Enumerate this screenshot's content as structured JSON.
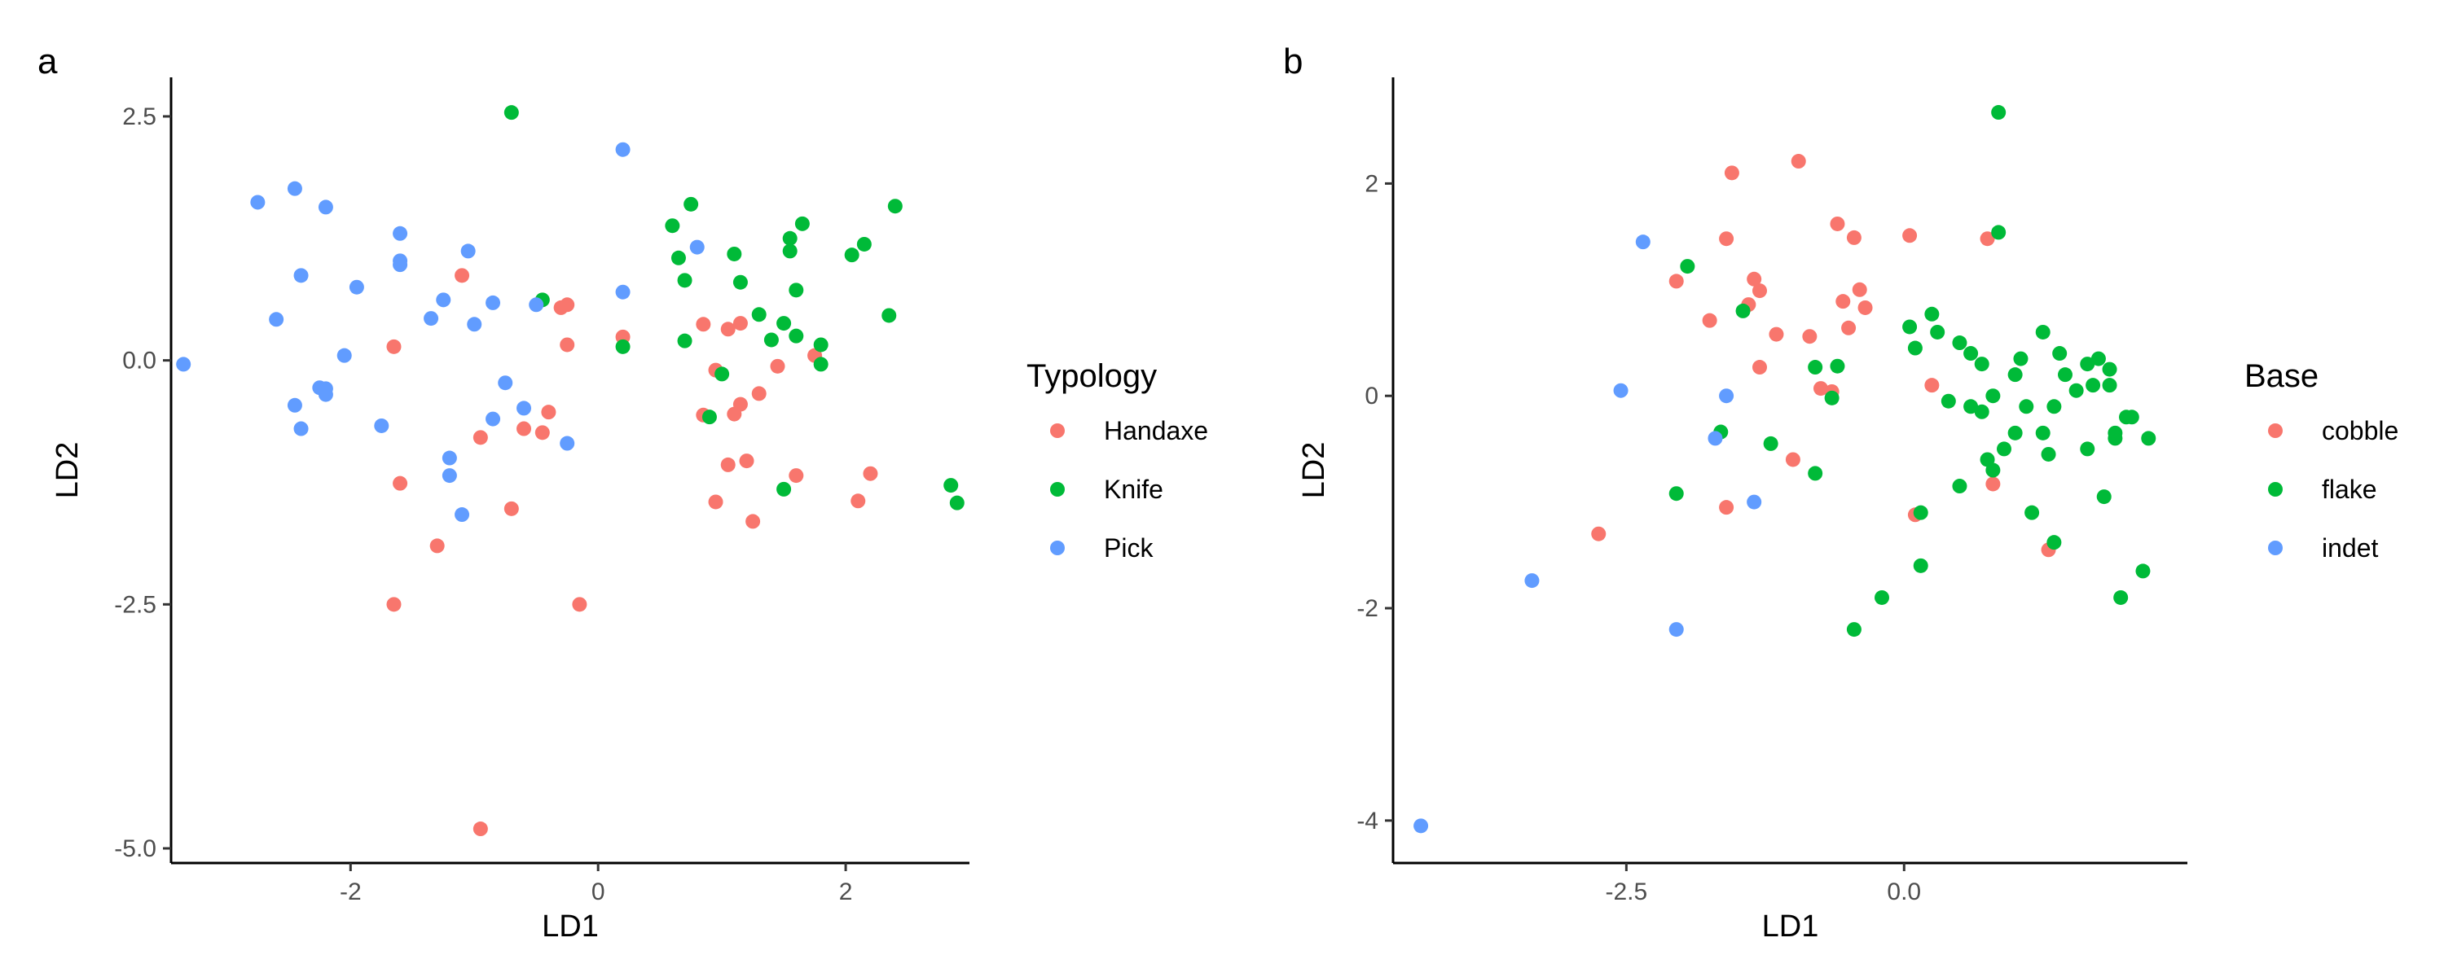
{
  "chart_data": [
    {
      "type": "scatter",
      "panel_tag": "a",
      "xlabel": "LD1",
      "ylabel": "LD2",
      "xlim": [
        -3.45,
        3.0
      ],
      "ylim": [
        -5.15,
        2.9
      ],
      "xticks": [
        -2,
        0,
        2
      ],
      "xtick_labels": [
        "-2",
        "0",
        "2"
      ],
      "yticks": [
        2.5,
        0,
        -2.5,
        -5
      ],
      "ytick_labels": [
        "2.5",
        "0.0",
        "-2.5",
        "-5.0"
      ],
      "grid": false,
      "legend_placement": "right",
      "legend_title": "Typology",
      "series": [
        {
          "name": "Handaxe",
          "color": "#F8766D",
          "points": [
            [
              -1.1,
              0.87
            ],
            [
              -1.65,
              0.14
            ],
            [
              -1.6,
              -1.26
            ],
            [
              -1.65,
              -2.5
            ],
            [
              -1.3,
              -1.9
            ],
            [
              -0.95,
              -0.79
            ],
            [
              -0.7,
              -1.52
            ],
            [
              -0.6,
              -0.7
            ],
            [
              -0.45,
              -0.74
            ],
            [
              -0.4,
              -0.53
            ],
            [
              -0.3,
              0.54
            ],
            [
              -0.25,
              0.57
            ],
            [
              -0.25,
              0.16
            ],
            [
              -0.15,
              -2.5
            ],
            [
              -0.95,
              -4.8
            ],
            [
              0.2,
              0.24
            ],
            [
              0.85,
              0.37
            ],
            [
              0.95,
              -0.1
            ],
            [
              0.85,
              -0.56
            ],
            [
              1.05,
              0.32
            ],
            [
              1.15,
              0.38
            ],
            [
              1.15,
              -0.45
            ],
            [
              1.1,
              -0.55
            ],
            [
              1.3,
              -0.34
            ],
            [
              0.95,
              -1.45
            ],
            [
              1.05,
              -1.07
            ],
            [
              1.2,
              -1.03
            ],
            [
              1.25,
              -1.65
            ],
            [
              1.45,
              -0.06
            ],
            [
              1.6,
              -1.18
            ],
            [
              1.75,
              0.05
            ],
            [
              2.1,
              -1.44
            ],
            [
              2.2,
              -1.16
            ]
          ]
        },
        {
          "name": "Knife",
          "color": "#00BA38",
          "points": [
            [
              -0.7,
              2.54
            ],
            [
              -0.45,
              0.62
            ],
            [
              0.2,
              0.14
            ],
            [
              0.6,
              1.38
            ],
            [
              0.65,
              1.05
            ],
            [
              0.7,
              0.2
            ],
            [
              0.7,
              0.82
            ],
            [
              0.75,
              1.6
            ],
            [
              0.9,
              -0.58
            ],
            [
              1.0,
              -0.14
            ],
            [
              1.1,
              1.09
            ],
            [
              1.15,
              0.8
            ],
            [
              1.3,
              0.47
            ],
            [
              1.4,
              0.21
            ],
            [
              1.5,
              -1.32
            ],
            [
              1.5,
              0.38
            ],
            [
              1.55,
              1.25
            ],
            [
              1.55,
              1.12
            ],
            [
              1.6,
              0.72
            ],
            [
              1.6,
              0.25
            ],
            [
              1.65,
              1.4
            ],
            [
              1.8,
              -0.04
            ],
            [
              1.8,
              0.16
            ],
            [
              2.05,
              1.08
            ],
            [
              2.15,
              1.19
            ],
            [
              2.35,
              0.46
            ],
            [
              2.4,
              1.58
            ],
            [
              2.85,
              -1.28
            ],
            [
              2.9,
              -1.46
            ]
          ]
        },
        {
          "name": "Pick",
          "color": "#619CFF",
          "points": [
            [
              -3.35,
              -0.04
            ],
            [
              -2.75,
              1.62
            ],
            [
              -2.6,
              0.42
            ],
            [
              -2.45,
              1.76
            ],
            [
              -2.4,
              0.87
            ],
            [
              -2.45,
              -0.46
            ],
            [
              -2.4,
              -0.7
            ],
            [
              -2.25,
              -0.28
            ],
            [
              -2.2,
              -0.35
            ],
            [
              -2.2,
              1.57
            ],
            [
              -2.2,
              -0.29
            ],
            [
              -2.05,
              0.05
            ],
            [
              -1.95,
              0.75
            ],
            [
              -1.75,
              -0.67
            ],
            [
              -1.6,
              1.3
            ],
            [
              -1.6,
              1.02
            ],
            [
              -1.6,
              0.98
            ],
            [
              -1.35,
              0.43
            ],
            [
              -1.25,
              0.62
            ],
            [
              -1.2,
              -1.0
            ],
            [
              -1.2,
              -1.18
            ],
            [
              -1.1,
              -1.58
            ],
            [
              -1.05,
              1.12
            ],
            [
              -1.0,
              0.37
            ],
            [
              -0.85,
              -0.6
            ],
            [
              -0.85,
              0.59
            ],
            [
              -0.75,
              -0.23
            ],
            [
              -0.6,
              -0.49
            ],
            [
              -0.5,
              0.57
            ],
            [
              -0.25,
              -0.85
            ],
            [
              0.2,
              0.7
            ],
            [
              0.2,
              2.16
            ],
            [
              0.8,
              1.16
            ]
          ]
        }
      ]
    },
    {
      "type": "scatter",
      "panel_tag": "b",
      "xlabel": "LD1",
      "ylabel": "LD2",
      "xlim": [
        -4.6,
        2.55
      ],
      "ylim": [
        -4.4,
        3.0
      ],
      "xticks": [
        -2.5,
        0.0
      ],
      "xtick_labels": [
        "-2.5",
        "0.0"
      ],
      "yticks": [
        2,
        0,
        -2,
        -4
      ],
      "ytick_labels": [
        "2",
        "0",
        "-2",
        "-4"
      ],
      "grid": false,
      "legend_placement": "right",
      "legend_title": "Base",
      "series": [
        {
          "name": "cobble",
          "color": "#F8766D",
          "points": [
            [
              -2.75,
              -1.3
            ],
            [
              -2.05,
              1.08
            ],
            [
              -1.75,
              0.71
            ],
            [
              -1.6,
              1.48
            ],
            [
              -1.55,
              2.1
            ],
            [
              -1.4,
              0.86
            ],
            [
              -1.35,
              1.1
            ],
            [
              -1.3,
              0.99
            ],
            [
              -1.3,
              0.27
            ],
            [
              -1.15,
              0.58
            ],
            [
              -1.0,
              -0.6
            ],
            [
              -0.95,
              2.21
            ],
            [
              -0.85,
              0.56
            ],
            [
              -0.75,
              0.07
            ],
            [
              -0.6,
              1.62
            ],
            [
              -0.55,
              0.89
            ],
            [
              -0.5,
              0.64
            ],
            [
              -0.45,
              1.49
            ],
            [
              -0.4,
              1.0
            ],
            [
              -0.35,
              0.83
            ],
            [
              -1.6,
              -1.05
            ],
            [
              0.05,
              1.51
            ],
            [
              0.1,
              -1.12
            ],
            [
              0.25,
              0.1
            ],
            [
              0.75,
              1.48
            ],
            [
              0.8,
              -0.83
            ],
            [
              1.3,
              -1.45
            ],
            [
              -0.65,
              0.04
            ]
          ]
        },
        {
          "name": "flake",
          "color": "#00BA38",
          "points": [
            [
              -1.95,
              1.22
            ],
            [
              -1.65,
              -0.34
            ],
            [
              -1.45,
              0.8
            ],
            [
              -1.2,
              -0.45
            ],
            [
              -0.8,
              -0.73
            ],
            [
              -0.6,
              0.28
            ],
            [
              -0.65,
              -0.02
            ],
            [
              -0.45,
              -2.2
            ],
            [
              -0.2,
              -1.9
            ],
            [
              0.05,
              0.65
            ],
            [
              0.1,
              0.45
            ],
            [
              0.15,
              -1.1
            ],
            [
              0.15,
              -1.6
            ],
            [
              0.25,
              0.77
            ],
            [
              0.3,
              0.6
            ],
            [
              0.4,
              -0.05
            ],
            [
              0.5,
              0.5
            ],
            [
              0.5,
              -0.85
            ],
            [
              0.6,
              0.4
            ],
            [
              0.6,
              -0.1
            ],
            [
              0.7,
              -0.15
            ],
            [
              0.7,
              0.3
            ],
            [
              0.75,
              -0.6
            ],
            [
              0.8,
              -0.7
            ],
            [
              0.8,
              0.0
            ],
            [
              0.85,
              2.67
            ],
            [
              0.85,
              1.54
            ],
            [
              0.9,
              -0.5
            ],
            [
              1.0,
              0.2
            ],
            [
              1.0,
              -0.35
            ],
            [
              1.05,
              0.35
            ],
            [
              1.1,
              -0.1
            ],
            [
              1.15,
              -1.1
            ],
            [
              1.25,
              0.6
            ],
            [
              1.25,
              -0.35
            ],
            [
              1.3,
              -0.55
            ],
            [
              1.35,
              -1.38
            ],
            [
              1.35,
              -0.1
            ],
            [
              1.4,
              0.4
            ],
            [
              1.45,
              0.2
            ],
            [
              1.55,
              0.05
            ],
            [
              1.65,
              -0.5
            ],
            [
              1.65,
              0.3
            ],
            [
              1.7,
              0.1
            ],
            [
              1.75,
              0.35
            ],
            [
              1.8,
              -0.95
            ],
            [
              1.85,
              0.25
            ],
            [
              1.85,
              0.1
            ],
            [
              1.9,
              -0.4
            ],
            [
              1.9,
              -0.35
            ],
            [
              1.95,
              -1.9
            ],
            [
              2.0,
              -0.2
            ],
            [
              2.05,
              -0.2
            ],
            [
              2.15,
              -1.65
            ],
            [
              2.2,
              -0.4
            ],
            [
              -2.05,
              -0.92
            ],
            [
              -0.8,
              0.27
            ]
          ]
        },
        {
          "name": "indet",
          "color": "#619CFF",
          "points": [
            [
              -4.35,
              -4.05
            ],
            [
              -3.35,
              -1.74
            ],
            [
              -2.55,
              0.05
            ],
            [
              -2.35,
              1.45
            ],
            [
              -2.05,
              -2.2
            ],
            [
              -1.7,
              -0.4
            ],
            [
              -1.6,
              0.0
            ],
            [
              -1.35,
              -1.0
            ]
          ]
        }
      ]
    }
  ]
}
